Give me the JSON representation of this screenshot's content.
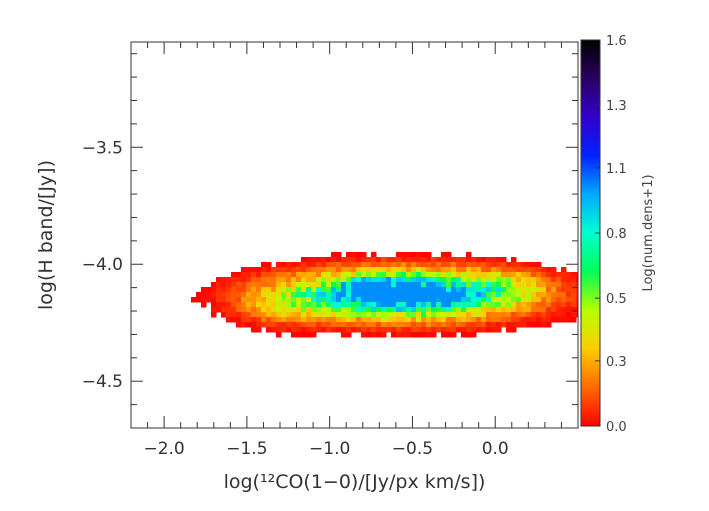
{
  "chart_data": {
    "type": "heatmap",
    "title": "",
    "xlabel": "log(¹²CO(1−0)/[Jy/px km/s])",
    "ylabel": "log(H band/[Jy])",
    "xlim": [
      -2.2,
      0.5
    ],
    "ylim": [
      -4.7,
      -3.05
    ],
    "x_ticks": [
      {
        "value": -2.0,
        "label": "−2.0"
      },
      {
        "value": -1.5,
        "label": "−1.5"
      },
      {
        "value": -1.0,
        "label": "−1.0"
      },
      {
        "value": -0.5,
        "label": "−0.5"
      },
      {
        "value": 0.0,
        "label": "0.0"
      }
    ],
    "y_ticks": [
      {
        "value": -3.5,
        "label": "−3.5"
      },
      {
        "value": -4.0,
        "label": "−4.0"
      },
      {
        "value": -4.5,
        "label": "−4.5"
      }
    ],
    "grid": false,
    "colorbar": {
      "label": "Log(num.dens+1)",
      "range": [
        0.0,
        1.6
      ],
      "position": "right",
      "ticks": [
        {
          "value": 0.0,
          "label": "0.0"
        },
        {
          "value": 0.27,
          "label": "0.3"
        },
        {
          "value": 0.53,
          "label": "0.5"
        },
        {
          "value": 0.8,
          "label": "0.8"
        },
        {
          "value": 1.07,
          "label": "1.1"
        },
        {
          "value": 1.33,
          "label": "1.3"
        },
        {
          "value": 1.6,
          "label": "1.6"
        }
      ],
      "colors": [
        "#ff0000",
        "#ff6a00",
        "#ffcc00",
        "#b6ff00",
        "#00ff55",
        "#00ffd0",
        "#00aaff",
        "#0022ff",
        "#3300cc",
        "#2a0060",
        "#000000"
      ]
    },
    "density_components": [
      {
        "x": -0.55,
        "y": -4.13,
        "sx": 0.52,
        "sy": 0.075,
        "w": 1.0
      },
      {
        "x": -0.7,
        "y": -4.12,
        "sx": 0.2,
        "sy": 0.04,
        "w": 0.55
      },
      {
        "x": -0.4,
        "y": -4.14,
        "sx": 0.15,
        "sy": 0.035,
        "w": 0.35
      },
      {
        "x": -1.3,
        "y": -4.18,
        "sx": 0.18,
        "sy": 0.06,
        "w": 0.18
      },
      {
        "x": 0.05,
        "y": -4.1,
        "sx": 0.16,
        "sy": 0.045,
        "w": 0.22
      }
    ]
  }
}
